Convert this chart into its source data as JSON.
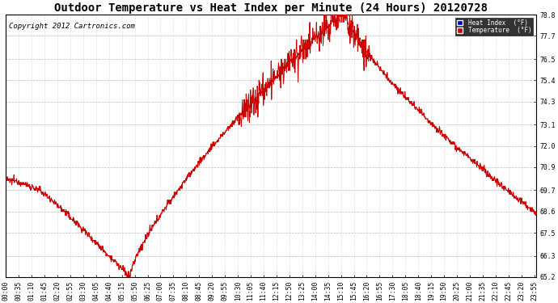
{
  "title": "Outdoor Temperature vs Heat Index per Minute (24 Hours) 20120728",
  "copyright": "Copyright 2012 Cartronics.com",
  "legend_heat": "Heat Index  (°F)",
  "legend_temp": "Temperature  (°F)",
  "heat_index_color": "#0000cc",
  "temp_color": "#cc0000",
  "background_color": "#ffffff",
  "plot_bg_color": "#ffffff",
  "grid_color": "#bbbbbb",
  "ylim": [
    65.2,
    78.8
  ],
  "yticks": [
    65.2,
    66.3,
    67.5,
    68.6,
    69.7,
    70.9,
    72.0,
    73.1,
    74.3,
    75.4,
    76.5,
    77.7,
    78.8
  ],
  "title_fontsize": 10,
  "tick_fontsize": 5.8,
  "copyright_fontsize": 6.5
}
